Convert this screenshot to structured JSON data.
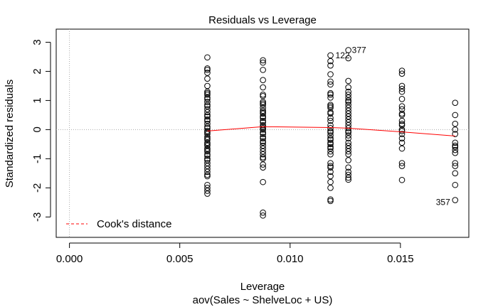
{
  "chart_data": {
    "type": "scatter",
    "title": "Residuals vs Leverage",
    "xlabel": "Leverage",
    "subtitle": "aov(Sales ~ ShelveLoc + US)",
    "ylabel": "Standardized residuals",
    "xlim": [
      -0.0006,
      0.0181
    ],
    "ylim": [
      -3.7,
      3.45
    ],
    "x_ticks": [
      0.0,
      0.005,
      0.01,
      0.015
    ],
    "x_tick_labels": [
      "0.000",
      "0.005",
      "0.010",
      "0.015"
    ],
    "y_ticks": [
      -3,
      -2,
      -1,
      0,
      1,
      2,
      3
    ],
    "y_tick_labels": [
      "-3",
      "-2",
      "-1",
      "0",
      "1",
      "2",
      "3"
    ],
    "colors": {
      "points": "#000000",
      "smooth": "#ff0000",
      "cooks": "#ff0000",
      "reference": "#aaaaaa"
    },
    "series": [
      {
        "x": 0.00625,
        "y": [
          2.48,
          2.1,
          2.05,
          1.95,
          1.75,
          1.5,
          1.3,
          1.25,
          1.2,
          1.1,
          1.05,
          0.95,
          0.85,
          0.8,
          0.7,
          0.6,
          0.5,
          0.45,
          0.35,
          0.3,
          0.2,
          0.1,
          0.05,
          -0.05,
          -0.1,
          -0.15,
          -0.25,
          -0.3,
          -0.35,
          -0.45,
          -0.5,
          -0.55,
          -0.65,
          -0.7,
          -0.75,
          -0.85,
          -0.9,
          -1.0,
          -1.05,
          -1.15,
          -1.25,
          -1.35,
          -1.45,
          -1.55,
          -1.6,
          -1.9,
          -2.0,
          -2.1,
          -2.2
        ]
      },
      {
        "x": 0.00877,
        "y": [
          2.38,
          2.3,
          2.05,
          1.7,
          1.45,
          1.2,
          1.15,
          0.95,
          0.9,
          0.85,
          0.75,
          0.65,
          0.6,
          0.55,
          0.45,
          0.4,
          0.3,
          0.25,
          0.15,
          0.1,
          0.05,
          0.0,
          -0.1,
          -0.15,
          -0.25,
          -0.3,
          -0.4,
          -0.45,
          -0.55,
          -0.65,
          -0.75,
          -0.85,
          -0.95,
          -1.0,
          -1.2,
          -1.3,
          -1.8,
          -2.85,
          -2.95
        ]
      },
      {
        "x": 0.01183,
        "y": [
          2.55,
          2.35,
          2.2,
          1.9,
          1.65,
          1.55,
          1.25,
          1.2,
          1.1,
          0.85,
          0.8,
          0.75,
          0.6,
          0.55,
          0.4,
          0.3,
          0.15,
          0.05,
          -0.05,
          -0.1,
          -0.2,
          -0.3,
          -0.35,
          -0.45,
          -0.5,
          -0.6,
          -0.65,
          -0.75,
          -0.85,
          -1.15,
          -1.25,
          -1.3,
          -1.45,
          -1.6,
          -1.8,
          -2.0,
          -2.4,
          -2.45
        ]
      },
      {
        "x": 0.01264,
        "y": [
          2.73,
          2.45,
          1.67,
          1.45,
          1.3,
          1.2,
          1.1,
          1.0,
          0.95,
          0.85,
          0.75,
          0.65,
          0.55,
          0.45,
          0.35,
          0.25,
          0.15,
          0.05,
          -0.05,
          -0.1,
          -0.2,
          -0.3,
          -0.45,
          -0.55,
          -0.65,
          -0.75,
          -0.85,
          -1.05,
          -1.3,
          -1.45,
          -1.55,
          -1.65,
          -1.72
        ]
      },
      {
        "x": 0.01507,
        "y": [
          2.02,
          1.92,
          1.5,
          1.4,
          1.3,
          1.05,
          0.8,
          0.7,
          0.55,
          0.5,
          0.3,
          0.2,
          0.15,
          0.0,
          -0.05,
          -0.15,
          -0.3,
          -0.45,
          -0.65,
          -1.15,
          -1.25,
          -1.73
        ]
      },
      {
        "x": 0.01748,
        "y": [
          0.92,
          0.5,
          0.2,
          0.0,
          -0.15,
          -0.45,
          -0.55,
          -0.6,
          -0.7,
          -0.8,
          -1.15,
          -1.25,
          -1.5,
          -1.9,
          -2.42
        ]
      }
    ],
    "smooth_line": {
      "x": [
        0.00625,
        0.00877,
        0.01183,
        0.01264,
        0.01507,
        0.01748
      ],
      "y": [
        -0.05,
        0.1,
        0.07,
        0.05,
        -0.08,
        -0.22
      ]
    },
    "point_labels": [
      {
        "text": "377",
        "x": 0.01264,
        "y": 2.73
      },
      {
        "text": "122",
        "x": 0.01183,
        "y": 2.55
      },
      {
        "text": "357",
        "x": 0.01748,
        "y": -2.42
      }
    ],
    "legend": {
      "label": "Cook's distance",
      "position": "bottom-left"
    }
  }
}
